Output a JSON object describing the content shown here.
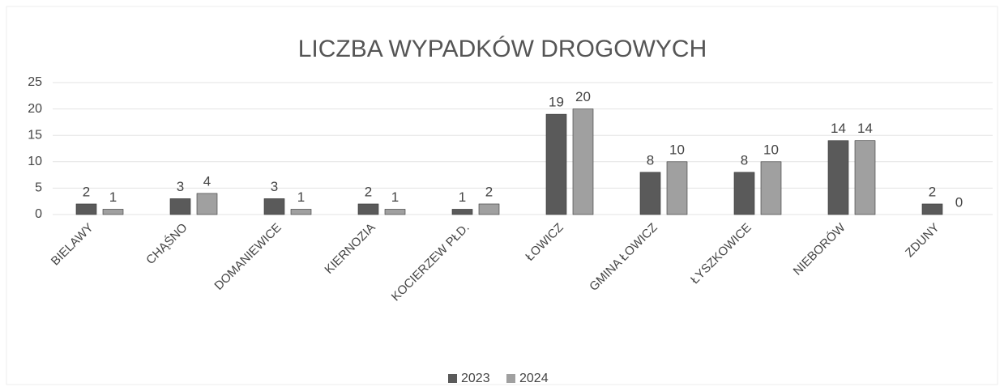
{
  "chart_data": {
    "type": "bar",
    "title": "LICZBA WYPADKÓW DROGOWYCH",
    "categories": [
      "BIELAWY",
      "CHĄŚNO",
      "DOMANIEWICE",
      "KIERNOZIA",
      "KOCIERZEW PŁD.",
      "ŁOWICZ",
      "GMINA ŁOWICZ",
      "ŁYSZKOWICE",
      "NIEBORÓW",
      "ZDUNY"
    ],
    "series": [
      {
        "name": "2023",
        "color": "#5a5a5a",
        "values": [
          2,
          3,
          3,
          2,
          1,
          19,
          8,
          8,
          14,
          2
        ]
      },
      {
        "name": "2024",
        "color": "#a0a0a0",
        "values": [
          1,
          4,
          1,
          1,
          2,
          20,
          10,
          10,
          14,
          0
        ]
      }
    ],
    "ylim": [
      0,
      25
    ],
    "yticks": [
      0,
      5,
      10,
      15,
      20,
      25
    ],
    "grid": true,
    "legend": "bottom"
  }
}
